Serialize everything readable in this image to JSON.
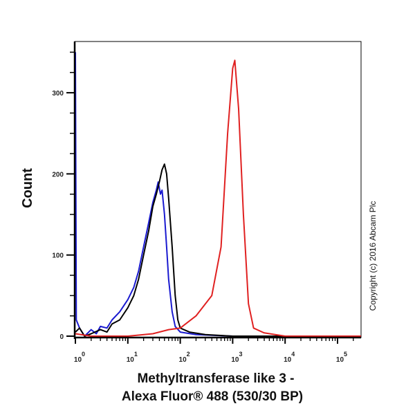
{
  "chart_data": {
    "type": "line",
    "xlabel_line1": "Methyltransferase like 3 -",
    "xlabel_line2": "Alexa Fluor® 488 (530/30 BP)",
    "ylabel": "Count",
    "x_scale": "log",
    "xlim": [
      1,
      280000
    ],
    "ylim": [
      0,
      363
    ],
    "x_ticks": [
      {
        "exp": "0"
      },
      {
        "exp": "1"
      },
      {
        "exp": "2"
      },
      {
        "exp": "3"
      },
      {
        "exp": "4"
      },
      {
        "exp": "5"
      }
    ],
    "x_tick_base": "10",
    "y_ticks": [
      "0",
      "100",
      "200",
      "300"
    ],
    "watermark": "Copyright (c) 2016 Abcam Plc",
    "series": [
      {
        "color": "#1a1ad0",
        "points": [
          [
            1.0,
            350
          ],
          [
            1.04,
            20
          ],
          [
            1.2,
            10
          ],
          [
            1.5,
            0
          ],
          [
            2,
            8
          ],
          [
            2.5,
            3
          ],
          [
            3,
            12
          ],
          [
            4,
            10
          ],
          [
            5,
            20
          ],
          [
            7,
            30
          ],
          [
            10,
            45
          ],
          [
            13,
            60
          ],
          [
            16,
            80
          ],
          [
            20,
            110
          ],
          [
            25,
            140
          ],
          [
            30,
            165
          ],
          [
            35,
            180
          ],
          [
            38,
            190
          ],
          [
            42,
            175
          ],
          [
            45,
            180
          ],
          [
            50,
            150
          ],
          [
            55,
            110
          ],
          [
            60,
            70
          ],
          [
            70,
            30
          ],
          [
            80,
            12
          ],
          [
            100,
            5
          ],
          [
            200,
            2
          ],
          [
            1000,
            0
          ],
          [
            280000,
            0
          ]
        ]
      },
      {
        "color": "#000000",
        "points": [
          [
            1.0,
            5
          ],
          [
            1.2,
            10
          ],
          [
            1.5,
            0
          ],
          [
            2,
            3
          ],
          [
            3,
            8
          ],
          [
            4,
            5
          ],
          [
            5,
            15
          ],
          [
            7,
            20
          ],
          [
            10,
            35
          ],
          [
            13,
            50
          ],
          [
            16,
            70
          ],
          [
            20,
            100
          ],
          [
            25,
            130
          ],
          [
            30,
            160
          ],
          [
            35,
            175
          ],
          [
            40,
            190
          ],
          [
            45,
            205
          ],
          [
            50,
            212
          ],
          [
            55,
            200
          ],
          [
            60,
            170
          ],
          [
            70,
            110
          ],
          [
            80,
            50
          ],
          [
            90,
            20
          ],
          [
            100,
            10
          ],
          [
            150,
            5
          ],
          [
            300,
            2
          ],
          [
            1000,
            0
          ],
          [
            280000,
            0
          ]
        ]
      },
      {
        "color": "#e02020",
        "points": [
          [
            1,
            3
          ],
          [
            2,
            0
          ],
          [
            10,
            0
          ],
          [
            30,
            3
          ],
          [
            60,
            8
          ],
          [
            100,
            10
          ],
          [
            200,
            25
          ],
          [
            400,
            50
          ],
          [
            600,
            110
          ],
          [
            800,
            250
          ],
          [
            1000,
            330
          ],
          [
            1100,
            340
          ],
          [
            1300,
            280
          ],
          [
            1600,
            150
          ],
          [
            2000,
            40
          ],
          [
            2500,
            10
          ],
          [
            4000,
            4
          ],
          [
            10000,
            0
          ],
          [
            280000,
            0
          ]
        ]
      }
    ]
  }
}
